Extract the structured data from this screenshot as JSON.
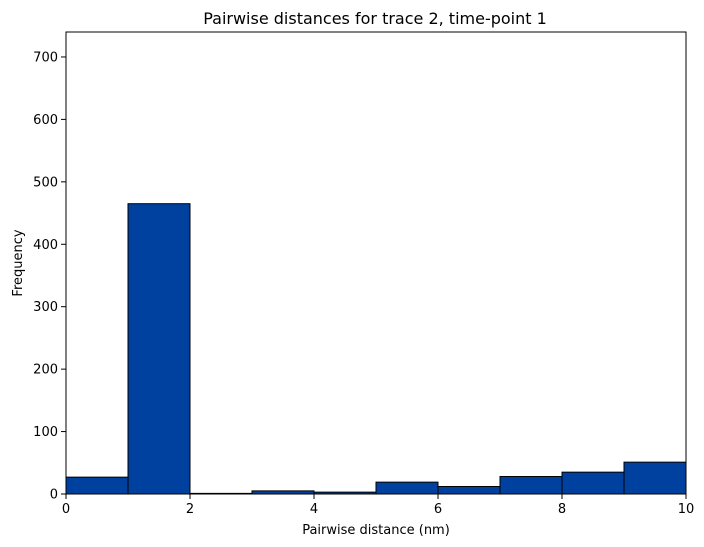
{
  "chart_data": {
    "type": "bar",
    "title": "Pairwise distances for trace 2, time-point 1",
    "xlabel": "Pairwise distance (nm)",
    "ylabel": "Frequency",
    "xlim": [
      0,
      10
    ],
    "ylim": [
      0,
      740
    ],
    "xticks": [
      0,
      2,
      4,
      6,
      8,
      10
    ],
    "yticks": [
      0,
      100,
      200,
      300,
      400,
      500,
      600,
      700
    ],
    "bins": [
      {
        "x0": 0,
        "x1": 1,
        "value": 27
      },
      {
        "x0": 1,
        "x1": 2,
        "value": 465
      },
      {
        "x0": 2,
        "x1": 3,
        "value": 1
      },
      {
        "x0": 3,
        "x1": 4,
        "value": 5
      },
      {
        "x0": 4,
        "x1": 5,
        "value": 3
      },
      {
        "x0": 5,
        "x1": 6,
        "value": 19
      },
      {
        "x0": 6,
        "x1": 7,
        "value": 12
      },
      {
        "x0": 7,
        "x1": 8,
        "value": 28
      },
      {
        "x0": 8,
        "x1": 9,
        "value": 35
      },
      {
        "x0": 9,
        "x1": 10,
        "value": 51
      }
    ],
    "grid": false,
    "legend": "none",
    "bar_color": "#0041a0",
    "edge_color": "#000000"
  }
}
